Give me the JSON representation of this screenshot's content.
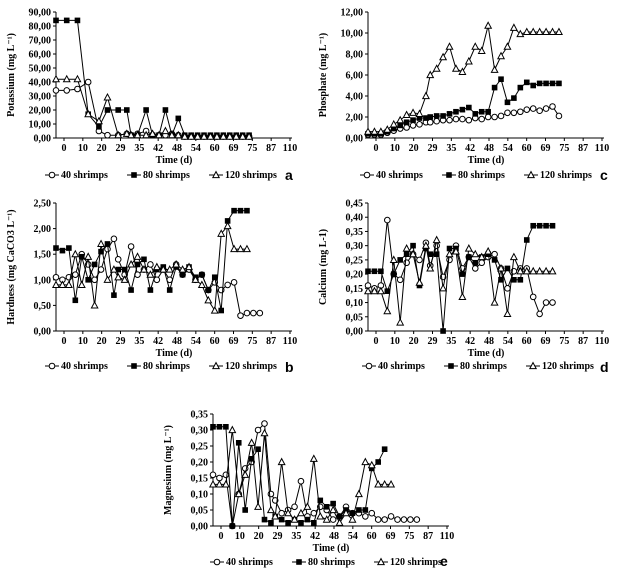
{
  "chart_data": [
    {
      "panel": "a",
      "type": "line",
      "xlabel": "Time (d)",
      "ylabel": "Potassium (mg L⁻¹)",
      "x_ticks": [
        "0",
        "10",
        "20",
        "29",
        "35",
        "42",
        "48",
        "54",
        "60",
        "69",
        "75",
        "87",
        "110"
      ],
      "y_ticks": [
        "0,00",
        "10,00",
        "20,00",
        "30,00",
        "40,00",
        "50,00",
        "60,00",
        "70,00",
        "80,00",
        "90,00"
      ],
      "ylim": [
        0,
        90
      ],
      "series": [
        {
          "name": "40 shrimps",
          "marker": "circle",
          "x": [
            0,
            5,
            10,
            15,
            20,
            24,
            29,
            33,
            35,
            38,
            42,
            45,
            48,
            51,
            54,
            57,
            60,
            63,
            66,
            69,
            72,
            75,
            78,
            81,
            84,
            87,
            90
          ],
          "values": [
            34,
            34,
            35,
            40,
            5,
            2,
            2,
            3,
            2,
            3,
            5,
            2,
            2,
            2,
            3,
            2,
            1,
            1,
            1,
            1,
            1,
            1,
            1,
            1,
            1,
            1,
            1
          ]
        },
        {
          "name": "80 shrimps",
          "marker": "square",
          "x": [
            0,
            5,
            10,
            15,
            20,
            24,
            29,
            33,
            35,
            38,
            42,
            45,
            48,
            51,
            54,
            57,
            60,
            63,
            66,
            69,
            72,
            75,
            78,
            81,
            84,
            87,
            90
          ],
          "values": [
            84,
            84,
            84,
            17,
            8,
            20,
            20,
            20,
            2,
            2,
            20,
            2,
            2,
            20,
            2,
            14,
            2,
            2,
            2,
            2,
            2,
            2,
            2,
            2,
            2,
            2,
            2
          ]
        },
        {
          "name": "120 shrimps",
          "marker": "triangle",
          "x": [
            0,
            5,
            10,
            15,
            20,
            24,
            29,
            33,
            35,
            38,
            42,
            45,
            48,
            51,
            54,
            57,
            60,
            63,
            66,
            69,
            72,
            75,
            78,
            81,
            84,
            87,
            90
          ],
          "values": [
            42,
            42,
            42,
            17,
            12,
            29,
            2,
            3,
            2,
            2,
            2,
            3,
            2,
            5,
            2,
            2,
            1,
            1,
            1,
            1,
            1,
            1,
            1,
            1,
            1,
            1,
            1
          ]
        }
      ]
    },
    {
      "panel": "b",
      "type": "line",
      "xlabel": "Time (d)",
      "ylabel": "Hardness (mg CaCO3  L⁻¹)",
      "x_ticks": [
        "0",
        "10",
        "20",
        "29",
        "35",
        "42",
        "48",
        "54",
        "60",
        "69",
        "75",
        "87",
        "110"
      ],
      "y_ticks": [
        "0,00",
        "0,50",
        "1,00",
        "1,50",
        "2,00",
        "2,50"
      ],
      "ylim": [
        0,
        2.5
      ],
      "series": [
        {
          "name": "40 shrimps",
          "marker": "circle",
          "x": [
            0,
            3,
            6,
            9,
            12,
            15,
            18,
            21,
            24,
            27,
            29,
            32,
            35,
            38,
            41,
            44,
            47,
            50,
            53,
            56,
            59,
            62,
            65,
            68,
            71,
            74,
            77,
            80,
            83,
            86,
            89,
            92,
            95
          ],
          "values": [
            1.05,
            1.0,
            1.05,
            1.1,
            1.5,
            1.3,
            1.0,
            1.2,
            1.6,
            1.8,
            1.4,
            1.1,
            1.65,
            1.1,
            1.2,
            1.3,
            1.0,
            1.2,
            1.0,
            1.3,
            1.1,
            1.2,
            1.0,
            1.1,
            0.8,
            0.95,
            0.8,
            0.9,
            0.95,
            0.3,
            0.35,
            0.35,
            0.35
          ]
        },
        {
          "name": "80 shrimps",
          "marker": "square",
          "x": [
            0,
            3,
            6,
            9,
            12,
            15,
            18,
            21,
            24,
            27,
            29,
            32,
            35,
            38,
            41,
            44,
            47,
            50,
            53,
            56,
            59,
            62,
            65,
            68,
            71,
            74,
            77,
            80,
            83,
            86,
            89
          ],
          "values": [
            1.62,
            1.57,
            1.62,
            0.6,
            1.45,
            1.0,
            1.3,
            1.55,
            1.7,
            0.7,
            1.2,
            1.2,
            0.8,
            1.3,
            1.4,
            0.8,
            1.2,
            1.25,
            0.8,
            1.25,
            1.1,
            1.25,
            1.05,
            1.1,
            0.8,
            1.05,
            0.4,
            2.15,
            2.35,
            2.35,
            2.35
          ]
        },
        {
          "name": "120 shrimps",
          "marker": "triangle",
          "x": [
            0,
            3,
            6,
            9,
            12,
            15,
            18,
            21,
            24,
            27,
            29,
            32,
            35,
            38,
            41,
            44,
            47,
            50,
            53,
            56,
            59,
            62,
            65,
            68,
            71,
            74,
            77,
            80,
            83,
            86,
            89
          ],
          "values": [
            0.9,
            0.9,
            0.9,
            1.5,
            0.9,
            1.45,
            0.5,
            1.7,
            1.0,
            1.2,
            1.05,
            1.0,
            1.3,
            1.45,
            1.2,
            1.1,
            1.25,
            1.2,
            1.2,
            1.3,
            1.2,
            1.25,
            1.0,
            0.9,
            0.6,
            0.4,
            1.9,
            2.05,
            1.6,
            1.6,
            1.6
          ]
        }
      ]
    },
    {
      "panel": "c",
      "type": "line",
      "xlabel": "Time (d)",
      "ylabel": "Phosphate (mg L⁻¹)",
      "x_ticks": [
        "0",
        "10",
        "20",
        "29",
        "35",
        "42",
        "48",
        "54",
        "60",
        "69",
        "75",
        "87",
        "110"
      ],
      "y_ticks": [
        "0,00",
        "2,00",
        "4,00",
        "6,00",
        "8,00",
        "10,00",
        "12,00"
      ],
      "ylim": [
        0,
        12
      ],
      "series": [
        {
          "name": "40 shrimps",
          "marker": "circle",
          "x": [
            0,
            3,
            6,
            9,
            12,
            15,
            18,
            21,
            24,
            27,
            29,
            32,
            35,
            38,
            41,
            44,
            47,
            50,
            53,
            56,
            59,
            62,
            65,
            68,
            71,
            74,
            77,
            80,
            83,
            86,
            89
          ],
          "values": [
            0.3,
            0.3,
            0.3,
            0.5,
            0.7,
            0.9,
            1.0,
            1.2,
            1.3,
            1.5,
            1.5,
            1.6,
            1.7,
            1.7,
            1.8,
            1.8,
            1.7,
            1.9,
            1.8,
            2.0,
            2.0,
            2.1,
            2.4,
            2.4,
            2.5,
            2.7,
            2.8,
            2.6,
            2.8,
            3.0,
            2.1
          ]
        },
        {
          "name": "80 shrimps",
          "marker": "square",
          "x": [
            0,
            3,
            6,
            9,
            12,
            15,
            18,
            21,
            24,
            27,
            29,
            32,
            35,
            38,
            41,
            44,
            47,
            50,
            53,
            56,
            59,
            62,
            65,
            68,
            71,
            74,
            77,
            80,
            83,
            86,
            89
          ],
          "values": [
            0.4,
            0.4,
            0.4,
            0.6,
            0.9,
            1.2,
            1.5,
            1.7,
            1.9,
            1.9,
            2.0,
            2.1,
            2.1,
            2.3,
            2.5,
            2.7,
            2.9,
            2.3,
            2.5,
            2.5,
            4.8,
            5.6,
            3.4,
            3.8,
            4.8,
            5.3,
            5.0,
            5.2,
            5.2,
            5.2,
            5.2
          ]
        },
        {
          "name": "120 shrimps",
          "marker": "triangle",
          "x": [
            0,
            3,
            6,
            9,
            12,
            15,
            18,
            21,
            24,
            27,
            29,
            32,
            35,
            38,
            41,
            44,
            47,
            50,
            53,
            56,
            59,
            62,
            65,
            68,
            71,
            74,
            77,
            80,
            83,
            86,
            89
          ],
          "values": [
            0.6,
            0.6,
            0.6,
            0.8,
            1.3,
            1.7,
            2.2,
            2.4,
            2.3,
            4.0,
            6.0,
            6.6,
            7.7,
            8.7,
            6.6,
            6.3,
            7.3,
            8.7,
            8.3,
            10.7,
            6.5,
            7.8,
            8.7,
            10.5,
            9.9,
            10.1,
            10.1,
            10.1,
            10.1,
            10.1,
            10.1
          ]
        }
      ]
    },
    {
      "panel": "d",
      "type": "line",
      "xlabel": "Time (d)",
      "ylabel": "Calcium (mg  L-1)",
      "x_ticks": [
        "0",
        "10",
        "20",
        "29",
        "35",
        "42",
        "48",
        "54",
        "60",
        "69",
        "75",
        "87",
        "110"
      ],
      "y_ticks": [
        "0,00",
        "0,05",
        "0,10",
        "0,15",
        "0,20",
        "0,25",
        "0,30",
        "0,35",
        "0,40",
        "0,45"
      ],
      "ylim": [
        0,
        0.45
      ],
      "series": [
        {
          "name": "40 shrimps",
          "marker": "circle",
          "x": [
            0,
            3,
            6,
            9,
            12,
            15,
            18,
            21,
            24,
            27,
            29,
            32,
            35,
            38,
            41,
            44,
            47,
            50,
            53,
            56,
            59,
            62,
            65,
            68,
            71,
            74,
            77,
            80,
            83,
            86
          ],
          "values": [
            0.16,
            0.15,
            0.16,
            0.39,
            0.2,
            0.18,
            0.24,
            0.27,
            0.25,
            0.31,
            0.23,
            0.3,
            0.19,
            0.25,
            0.3,
            0.22,
            0.26,
            0.22,
            0.24,
            0.26,
            0.27,
            0.22,
            0.15,
            0.21,
            0.22,
            0.22,
            0.12,
            0.06,
            0.1,
            0.1
          ]
        },
        {
          "name": "80 shrimps",
          "marker": "square",
          "x": [
            0,
            3,
            6,
            9,
            12,
            15,
            18,
            21,
            24,
            27,
            29,
            32,
            35,
            38,
            41,
            44,
            47,
            50,
            53,
            56,
            59,
            62,
            65,
            68,
            71,
            74,
            77,
            80,
            83,
            86
          ],
          "values": [
            0.21,
            0.21,
            0.21,
            0.14,
            0.2,
            0.25,
            0.27,
            0.3,
            0.16,
            0.29,
            0.27,
            0.27,
            0.0,
            0.29,
            0.29,
            0.2,
            0.26,
            0.24,
            0.26,
            0.27,
            0.25,
            0.18,
            0.22,
            0.18,
            0.18,
            0.32,
            0.37,
            0.37,
            0.37,
            0.37
          ]
        },
        {
          "name": "120 shrimps",
          "marker": "triangle",
          "x": [
            0,
            3,
            6,
            9,
            12,
            15,
            18,
            21,
            24,
            27,
            29,
            32,
            35,
            38,
            41,
            44,
            47,
            50,
            53,
            56,
            59,
            62,
            65,
            68,
            71,
            74,
            77,
            80,
            83,
            86
          ],
          "values": [
            0.14,
            0.14,
            0.14,
            0.07,
            0.25,
            0.03,
            0.29,
            0.27,
            0.17,
            0.3,
            0.22,
            0.32,
            0.15,
            0.27,
            0.28,
            0.12,
            0.29,
            0.27,
            0.26,
            0.28,
            0.1,
            0.22,
            0.06,
            0.26,
            0.21,
            0.21,
            0.21,
            0.21,
            0.21,
            0.21
          ]
        }
      ]
    },
    {
      "panel": "e",
      "type": "line",
      "xlabel": "Time (d)",
      "ylabel": "Magnesium (mg  L⁻¹)",
      "x_ticks": [
        "0",
        "10",
        "20",
        "29",
        "35",
        "42",
        "48",
        "54",
        "60",
        "69",
        "75",
        "87",
        "110"
      ],
      "y_ticks": [
        "0,00",
        "0,05",
        "0,10",
        "0,15",
        "0,20",
        "0,25",
        "0,30",
        "0,35"
      ],
      "ylim": [
        0,
        0.35
      ],
      "series": [
        {
          "name": "40 shrimps",
          "marker": "circle",
          "x": [
            0,
            3,
            6,
            9,
            12,
            15,
            18,
            21,
            24,
            27,
            29,
            32,
            35,
            38,
            41,
            44,
            47,
            50,
            53,
            56,
            59,
            62,
            65,
            68,
            71,
            74,
            77,
            80,
            83,
            86,
            89,
            92,
            95
          ],
          "values": [
            0.16,
            0.15,
            0.16,
            0.0,
            0.1,
            0.18,
            0.2,
            0.3,
            0.32,
            0.1,
            0.08,
            0.04,
            0.05,
            0.06,
            0.14,
            0.03,
            0.04,
            0.06,
            0.05,
            0.02,
            0.03,
            0.06,
            0.04,
            0.04,
            0.03,
            0.04,
            0.02,
            0.02,
            0.03,
            0.02,
            0.02,
            0.02,
            0.02
          ]
        },
        {
          "name": "80 shrimps",
          "marker": "square",
          "x": [
            0,
            3,
            6,
            9,
            12,
            15,
            18,
            21,
            24,
            27,
            29,
            32,
            35,
            38,
            41,
            44,
            47,
            50,
            53,
            56,
            59,
            62,
            65,
            68,
            71,
            74,
            77,
            80
          ],
          "values": [
            0.31,
            0.31,
            0.31,
            0.0,
            0.26,
            0.05,
            0.21,
            0.24,
            0.02,
            0.01,
            0.03,
            0.02,
            0.01,
            0.02,
            0.01,
            0.02,
            0.01,
            0.08,
            0.06,
            0.07,
            0.03,
            0.05,
            0.04,
            0.05,
            0.05,
            0.18,
            0.2,
            0.24
          ]
        },
        {
          "name": "120 shrimps",
          "marker": "triangle",
          "x": [
            0,
            3,
            6,
            9,
            12,
            15,
            18,
            21,
            24,
            27,
            29,
            32,
            35,
            38,
            41,
            44,
            47,
            50,
            53,
            56,
            59,
            62,
            65,
            68,
            71,
            74,
            77,
            80,
            83
          ],
          "values": [
            0.13,
            0.13,
            0.13,
            0.3,
            0.1,
            0.16,
            0.26,
            0.06,
            0.29,
            0.05,
            0.03,
            0.2,
            0.04,
            0.02,
            0.04,
            0.06,
            0.21,
            0.03,
            0.02,
            0.05,
            0.01,
            0.04,
            0.02,
            0.1,
            0.2,
            0.19,
            0.13,
            0.13,
            0.13
          ]
        }
      ]
    }
  ]
}
